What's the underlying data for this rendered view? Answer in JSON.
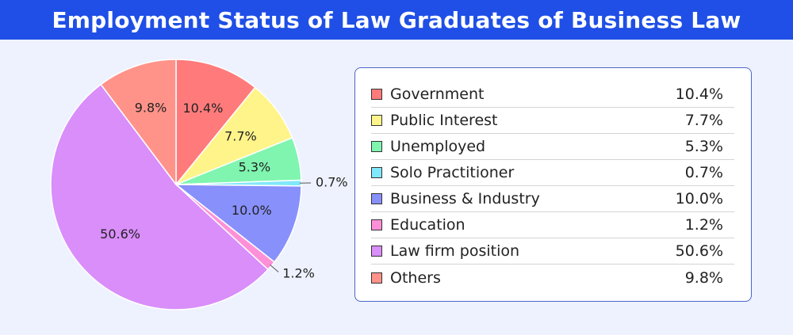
{
  "header": {
    "title": "Employment Status of Law Graduates of Business Law"
  },
  "chart_data": {
    "type": "pie",
    "title": "Employment Status of Law Graduates of Business Law",
    "categories": [
      "Government",
      "Public Interest",
      "Unemployed",
      "Solo Practitioner",
      "Business & Industry",
      "Education",
      "Law firm position",
      "Others"
    ],
    "values": [
      10.4,
      7.7,
      5.3,
      0.7,
      10.0,
      1.2,
      50.6,
      9.8
    ],
    "labels": [
      "10.4%",
      "7.7%",
      "5.3%",
      "0.7%",
      "10.0%",
      "1.2%",
      "50.6%",
      "9.8%"
    ],
    "colors": [
      "#ff7b7b",
      "#fff48a",
      "#7ff5b0",
      "#80e8fb",
      "#8890fc",
      "#ff90d8",
      "#d98efa",
      "#ff938a"
    ],
    "legend_placement": "right"
  }
}
